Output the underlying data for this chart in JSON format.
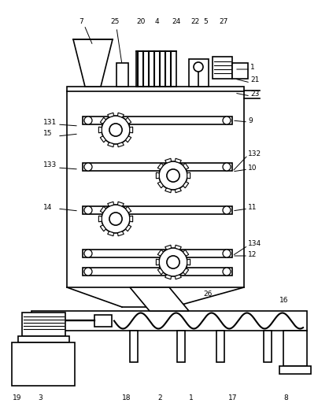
{
  "bg_color": "#ffffff",
  "line_color": "#000000",
  "line_width": 1.2,
  "gray_fill": "#d0d0d0",
  "light_gray": "#e8e8e8"
}
